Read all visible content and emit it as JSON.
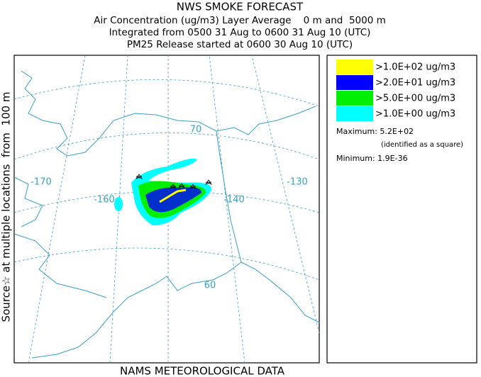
{
  "header": {
    "lines": [
      "NWS SMOKE FORECAST",
      "Air Concentration (ug/m3) Layer Average    0 m and  5000 m",
      "Integrated from 0500 31 Aug to 0600 31 Aug 10 (UTC)",
      "PM25 Release started at 0600 30 Aug 10 (UTC)"
    ]
  },
  "side_label": "Source☆ at multiple locations  from  100 m",
  "footer": "NAMS METEOROLOGICAL DATA",
  "map": {
    "labels": [
      "-170",
      "-160",
      "-140",
      "-130",
      "70",
      "60"
    ]
  },
  "legend": {
    "entries": [
      {
        "color": "#ffff00",
        "label": ">1.0E+02 ug/m3"
      },
      {
        "color": "#0000ff",
        "label": ">2.0E+01 ug/m3"
      },
      {
        "color": "#00ee00",
        "label": ">5.0E+00 ug/m3"
      },
      {
        "color": "#00ffff",
        "label": ">1.0E+00 ug/m3"
      }
    ]
  },
  "stats": {
    "maximum": "Maximum: 5.2E+02",
    "maximum_note": "(identified as a square)",
    "minimum": "Minimum: 1.9E-36"
  }
}
